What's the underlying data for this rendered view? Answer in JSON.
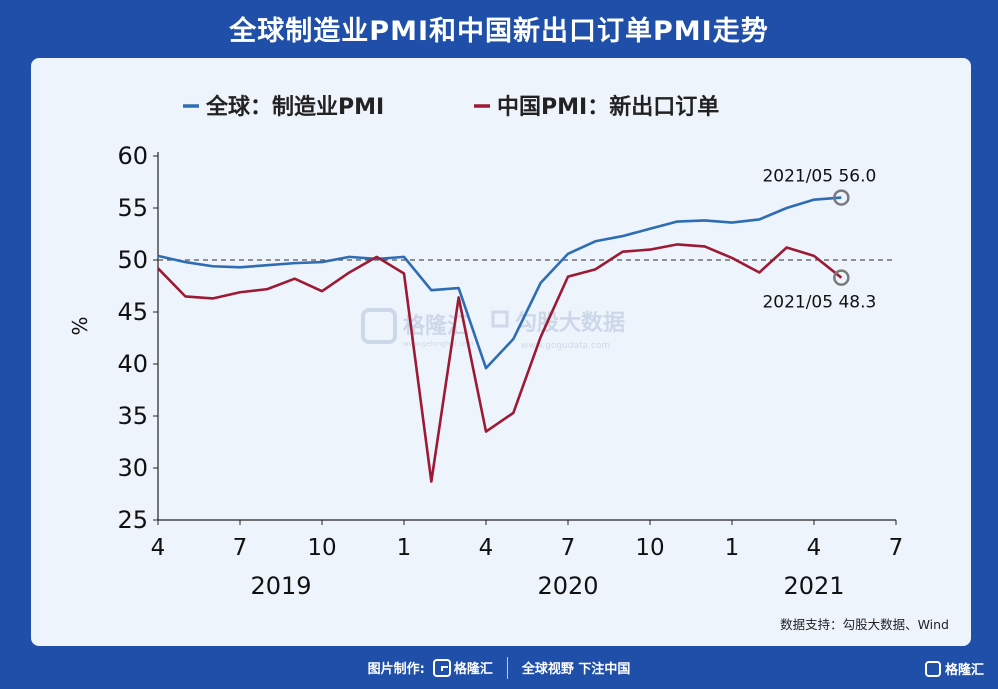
{
  "header": {
    "title": "全球制造业PMI和中国新出口订单PMI走势"
  },
  "footer": {
    "credit_label": "图片制作:",
    "brand": "格隆汇",
    "slogan": "全球视野 下注中国"
  },
  "corner_brand": "格隆汇",
  "source": "数据支持：勾股大数据、Wind",
  "watermarks": {
    "left": "格隆汇",
    "left_url": "www.gelonghui.com",
    "right": "勾股大数据",
    "right_url": "www.gogudata.com"
  },
  "colors": {
    "background": "#1f4fa8",
    "card": "#eef4fc",
    "global_series": "#2e6cb4",
    "china_series": "#9c1a33",
    "reference_line": "#555555"
  },
  "chart_data": {
    "type": "line",
    "ylabel": "%",
    "ylim": [
      25,
      60
    ],
    "yticks": [
      25,
      30,
      35,
      40,
      45,
      50,
      55,
      60
    ],
    "xlim": [
      0,
      27
    ],
    "xticks": [
      {
        "x": 0,
        "label": "4"
      },
      {
        "x": 3,
        "label": "7"
      },
      {
        "x": 6,
        "label": "10"
      },
      {
        "x": 9,
        "label": "1"
      },
      {
        "x": 12,
        "label": "4"
      },
      {
        "x": 15,
        "label": "7"
      },
      {
        "x": 18,
        "label": "10"
      },
      {
        "x": 21,
        "label": "1"
      },
      {
        "x": 24,
        "label": "4"
      },
      {
        "x": 27,
        "label": "7"
      }
    ],
    "year_labels": [
      {
        "x": 4.5,
        "label": "2019"
      },
      {
        "x": 15,
        "label": "2020"
      },
      {
        "x": 24,
        "label": "2021"
      }
    ],
    "reference_line": 50,
    "legend_position": "top-left",
    "grid": false,
    "x": [
      "2019/04",
      "2019/05",
      "2019/06",
      "2019/07",
      "2019/08",
      "2019/09",
      "2019/10",
      "2019/11",
      "2019/12",
      "2020/01",
      "2020/02",
      "2020/03",
      "2020/04",
      "2020/05",
      "2020/06",
      "2020/07",
      "2020/08",
      "2020/09",
      "2020/10",
      "2020/11",
      "2020/12",
      "2021/01",
      "2021/02",
      "2021/03",
      "2021/04",
      "2021/05"
    ],
    "series": [
      {
        "name": "全球：制造业PMI",
        "color": "#2e6cb4",
        "values": [
          50.4,
          49.8,
          49.4,
          49.3,
          49.5,
          49.7,
          49.8,
          50.3,
          50.1,
          50.3,
          47.1,
          47.3,
          39.6,
          42.4,
          47.8,
          50.6,
          51.8,
          52.3,
          53.0,
          53.7,
          53.8,
          53.6,
          53.9,
          55.0,
          55.8,
          56.0
        ]
      },
      {
        "name": "中国PMI：新出口订单",
        "color": "#9c1a33",
        "values": [
          49.2,
          46.5,
          46.3,
          46.9,
          47.2,
          48.2,
          47.0,
          48.8,
          50.3,
          48.7,
          28.7,
          46.4,
          33.5,
          35.3,
          42.6,
          48.4,
          49.1,
          50.8,
          51.0,
          51.5,
          51.3,
          50.2,
          48.8,
          51.2,
          50.4,
          48.3
        ]
      }
    ],
    "annotations": [
      {
        "series": 0,
        "point": "2021/05",
        "text": "2021/05 56.0",
        "position": "above"
      },
      {
        "series": 1,
        "point": "2021/05",
        "text": "2021/05 48.3",
        "position": "below"
      }
    ]
  }
}
